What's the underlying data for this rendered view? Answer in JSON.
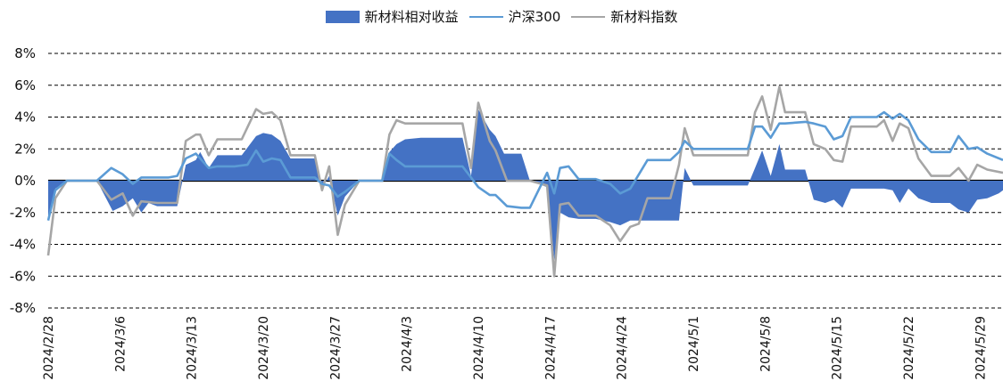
{
  "chart_data": {
    "type": "area",
    "title": "",
    "xlabel": "",
    "ylabel": "",
    "ylim": [
      -8,
      8
    ],
    "yticks": [
      -8,
      -6,
      -4,
      -2,
      0,
      2,
      4,
      6,
      8
    ],
    "ytick_labels": [
      "-8%",
      "-6%",
      "-4%",
      "-2%",
      "0%",
      "2%",
      "4%",
      "6%",
      "8%"
    ],
    "grid": "horizontal-dashed",
    "legend_position": "top-center",
    "x_tick_labels": [
      {
        "date": "2024/2/28",
        "index": 0
      },
      {
        "date": "2024/3/6",
        "index": 5
      },
      {
        "date": "2024/3/13",
        "index": 10
      },
      {
        "date": "2024/3/20",
        "index": 15
      },
      {
        "date": "2024/3/27",
        "index": 20
      },
      {
        "date": "2024/4/3",
        "index": 25
      },
      {
        "date": "2024/4/10",
        "index": 30
      },
      {
        "date": "2024/4/17",
        "index": 35
      },
      {
        "date": "2024/4/24",
        "index": 40
      },
      {
        "date": "2024/5/1",
        "index": 45
      },
      {
        "date": "2024/5/8",
        "index": 50
      },
      {
        "date": "2024/5/15",
        "index": 55
      },
      {
        "date": "2024/5/22",
        "index": 60
      },
      {
        "date": "2024/5/29",
        "index": 65
      }
    ],
    "series": [
      {
        "name": "新材料相对收益",
        "kind": "area",
        "color": "#4472C4",
        "values": [
          {
            "x": 0.0,
            "y": -2.3
          },
          {
            "x": 0.5,
            "y": -0.5
          },
          {
            "x": 1.3,
            "y": 0.0
          },
          {
            "x": 3.4,
            "y": 0.0
          },
          {
            "x": 4.5,
            "y": -1.9
          },
          {
            "x": 5.2,
            "y": -1.6
          },
          {
            "x": 5.9,
            "y": -1.1
          },
          {
            "x": 6.5,
            "y": -2.0
          },
          {
            "x": 7.0,
            "y": -1.4
          },
          {
            "x": 7.6,
            "y": -1.6
          },
          {
            "x": 9.0,
            "y": -1.6
          },
          {
            "x": 9.6,
            "y": 1.0
          },
          {
            "x": 10.3,
            "y": 1.3
          },
          {
            "x": 10.6,
            "y": 1.8
          },
          {
            "x": 11.2,
            "y": 0.8
          },
          {
            "x": 11.8,
            "y": 1.6
          },
          {
            "x": 13.5,
            "y": 1.6
          },
          {
            "x": 14.5,
            "y": 2.8
          },
          {
            "x": 15.0,
            "y": 3.0
          },
          {
            "x": 15.6,
            "y": 2.9
          },
          {
            "x": 16.2,
            "y": 2.5
          },
          {
            "x": 16.9,
            "y": 1.4
          },
          {
            "x": 18.6,
            "y": 1.4
          },
          {
            "x": 19.1,
            "y": -0.5
          },
          {
            "x": 19.6,
            "y": 0.3
          },
          {
            "x": 20.2,
            "y": -2.2
          },
          {
            "x": 20.7,
            "y": -1.0
          },
          {
            "x": 21.7,
            "y": 0.0
          },
          {
            "x": 23.3,
            "y": 0.0
          },
          {
            "x": 23.8,
            "y": 1.8
          },
          {
            "x": 24.3,
            "y": 2.3
          },
          {
            "x": 24.9,
            "y": 2.6
          },
          {
            "x": 26.0,
            "y": 2.7
          },
          {
            "x": 28.9,
            "y": 2.7
          },
          {
            "x": 29.5,
            "y": 0.3
          },
          {
            "x": 30.0,
            "y": 4.5
          },
          {
            "x": 30.8,
            "y": 3.2
          },
          {
            "x": 31.2,
            "y": 2.8
          },
          {
            "x": 31.8,
            "y": 1.7
          },
          {
            "x": 33.0,
            "y": 1.7
          },
          {
            "x": 33.6,
            "y": 0.0
          },
          {
            "x": 34.8,
            "y": -0.4
          },
          {
            "x": 35.3,
            "y": -5.0
          },
          {
            "x": 35.7,
            "y": -2.0
          },
          {
            "x": 36.3,
            "y": -2.3
          },
          {
            "x": 37.0,
            "y": -2.4
          },
          {
            "x": 38.2,
            "y": -2.4
          },
          {
            "x": 39.2,
            "y": -2.6
          },
          {
            "x": 39.9,
            "y": -2.8
          },
          {
            "x": 40.6,
            "y": -2.5
          },
          {
            "x": 41.8,
            "y": -2.5
          },
          {
            "x": 44.0,
            "y": -2.5
          },
          {
            "x": 44.4,
            "y": 0.8
          },
          {
            "x": 45.0,
            "y": -0.3
          },
          {
            "x": 48.8,
            "y": -0.3
          },
          {
            "x": 49.3,
            "y": 0.8
          },
          {
            "x": 49.8,
            "y": 1.9
          },
          {
            "x": 50.4,
            "y": 0.3
          },
          {
            "x": 51.0,
            "y": 2.3
          },
          {
            "x": 51.4,
            "y": 0.7
          },
          {
            "x": 52.8,
            "y": 0.7
          },
          {
            "x": 53.4,
            "y": -1.2
          },
          {
            "x": 54.2,
            "y": -1.4
          },
          {
            "x": 54.8,
            "y": -1.2
          },
          {
            "x": 55.4,
            "y": -1.7
          },
          {
            "x": 56.0,
            "y": -0.5
          },
          {
            "x": 58.3,
            "y": -0.5
          },
          {
            "x": 58.9,
            "y": -0.6
          },
          {
            "x": 59.4,
            "y": -1.4
          },
          {
            "x": 60.0,
            "y": -0.5
          },
          {
            "x": 60.7,
            "y": -1.1
          },
          {
            "x": 61.6,
            "y": -1.4
          },
          {
            "x": 62.9,
            "y": -1.4
          },
          {
            "x": 63.5,
            "y": -1.8
          },
          {
            "x": 64.2,
            "y": -2.0
          },
          {
            "x": 64.8,
            "y": -1.2
          },
          {
            "x": 65.5,
            "y": -1.1
          },
          {
            "x": 66.3,
            "y": -0.8
          },
          {
            "x": 66.6,
            "y": -0.6
          }
        ]
      },
      {
        "name": "沪深300",
        "kind": "line",
        "color": "#5B9BD5",
        "values": [
          {
            "x": 0.0,
            "y": -2.5
          },
          {
            "x": 0.5,
            "y": -0.6
          },
          {
            "x": 1.3,
            "y": 0.0
          },
          {
            "x": 3.4,
            "y": 0.0
          },
          {
            "x": 4.4,
            "y": 0.8
          },
          {
            "x": 5.2,
            "y": 0.4
          },
          {
            "x": 5.9,
            "y": -0.2
          },
          {
            "x": 6.5,
            "y": 0.2
          },
          {
            "x": 7.6,
            "y": 0.2
          },
          {
            "x": 8.4,
            "y": 0.2
          },
          {
            "x": 9.0,
            "y": 0.3
          },
          {
            "x": 9.6,
            "y": 1.4
          },
          {
            "x": 10.3,
            "y": 1.7
          },
          {
            "x": 11.2,
            "y": 0.8
          },
          {
            "x": 11.8,
            "y": 0.9
          },
          {
            "x": 13.0,
            "y": 0.9
          },
          {
            "x": 13.9,
            "y": 1.0
          },
          {
            "x": 14.5,
            "y": 1.9
          },
          {
            "x": 15.0,
            "y": 1.2
          },
          {
            "x": 15.6,
            "y": 1.4
          },
          {
            "x": 16.2,
            "y": 1.3
          },
          {
            "x": 16.9,
            "y": 0.2
          },
          {
            "x": 18.6,
            "y": 0.2
          },
          {
            "x": 19.1,
            "y": -0.2
          },
          {
            "x": 19.6,
            "y": -0.3
          },
          {
            "x": 20.2,
            "y": -1.0
          },
          {
            "x": 20.7,
            "y": -0.7
          },
          {
            "x": 21.7,
            "y": 0.0
          },
          {
            "x": 23.3,
            "y": 0.0
          },
          {
            "x": 23.8,
            "y": 1.7
          },
          {
            "x": 24.3,
            "y": 1.3
          },
          {
            "x": 24.9,
            "y": 0.9
          },
          {
            "x": 26.0,
            "y": 0.9
          },
          {
            "x": 28.9,
            "y": 0.9
          },
          {
            "x": 29.5,
            "y": 0.2
          },
          {
            "x": 30.0,
            "y": -0.4
          },
          {
            "x": 30.8,
            "y": -0.9
          },
          {
            "x": 31.2,
            "y": -0.9
          },
          {
            "x": 32.0,
            "y": -1.6
          },
          {
            "x": 33.0,
            "y": -1.7
          },
          {
            "x": 33.6,
            "y": -1.7
          },
          {
            "x": 34.8,
            "y": 0.5
          },
          {
            "x": 35.3,
            "y": -0.8
          },
          {
            "x": 35.7,
            "y": 0.8
          },
          {
            "x": 36.3,
            "y": 0.9
          },
          {
            "x": 37.0,
            "y": 0.1
          },
          {
            "x": 38.2,
            "y": 0.1
          },
          {
            "x": 39.2,
            "y": -0.2
          },
          {
            "x": 39.9,
            "y": -0.8
          },
          {
            "x": 40.6,
            "y": -0.5
          },
          {
            "x": 41.8,
            "y": 1.3
          },
          {
            "x": 43.4,
            "y": 1.3
          },
          {
            "x": 44.0,
            "y": 1.8
          },
          {
            "x": 44.4,
            "y": 2.5
          },
          {
            "x": 45.0,
            "y": 2.0
          },
          {
            "x": 48.8,
            "y": 2.0
          },
          {
            "x": 49.3,
            "y": 3.4
          },
          {
            "x": 49.8,
            "y": 3.4
          },
          {
            "x": 50.4,
            "y": 2.7
          },
          {
            "x": 51.0,
            "y": 3.6
          },
          {
            "x": 51.4,
            "y": 3.6
          },
          {
            "x": 52.8,
            "y": 3.7
          },
          {
            "x": 53.4,
            "y": 3.6
          },
          {
            "x": 54.2,
            "y": 3.4
          },
          {
            "x": 54.8,
            "y": 2.6
          },
          {
            "x": 55.4,
            "y": 2.8
          },
          {
            "x": 56.0,
            "y": 4.0
          },
          {
            "x": 57.8,
            "y": 4.0
          },
          {
            "x": 58.3,
            "y": 4.3
          },
          {
            "x": 58.9,
            "y": 3.9
          },
          {
            "x": 59.4,
            "y": 4.2
          },
          {
            "x": 60.0,
            "y": 3.8
          },
          {
            "x": 60.7,
            "y": 2.6
          },
          {
            "x": 61.6,
            "y": 1.8
          },
          {
            "x": 62.9,
            "y": 1.8
          },
          {
            "x": 63.5,
            "y": 2.8
          },
          {
            "x": 64.2,
            "y": 2.0
          },
          {
            "x": 64.8,
            "y": 2.1
          },
          {
            "x": 65.5,
            "y": 1.7
          },
          {
            "x": 66.6,
            "y": 1.3
          }
        ]
      },
      {
        "name": "新材料指数",
        "kind": "line",
        "color": "#A6A6A6",
        "values": [
          {
            "x": 0.0,
            "y": -4.7
          },
          {
            "x": 0.5,
            "y": -1.1
          },
          {
            "x": 1.3,
            "y": 0.0
          },
          {
            "x": 3.4,
            "y": 0.0
          },
          {
            "x": 4.4,
            "y": -1.2
          },
          {
            "x": 5.2,
            "y": -0.8
          },
          {
            "x": 5.9,
            "y": -2.2
          },
          {
            "x": 6.5,
            "y": -1.3
          },
          {
            "x": 7.6,
            "y": -1.4
          },
          {
            "x": 9.0,
            "y": -1.4
          },
          {
            "x": 9.6,
            "y": 2.5
          },
          {
            "x": 10.3,
            "y": 2.9
          },
          {
            "x": 10.6,
            "y": 2.9
          },
          {
            "x": 11.2,
            "y": 1.6
          },
          {
            "x": 11.8,
            "y": 2.6
          },
          {
            "x": 13.5,
            "y": 2.6
          },
          {
            "x": 14.5,
            "y": 4.5
          },
          {
            "x": 15.0,
            "y": 4.2
          },
          {
            "x": 15.6,
            "y": 4.3
          },
          {
            "x": 16.2,
            "y": 3.8
          },
          {
            "x": 16.9,
            "y": 1.6
          },
          {
            "x": 18.6,
            "y": 1.6
          },
          {
            "x": 19.1,
            "y": -0.6
          },
          {
            "x": 19.6,
            "y": 0.9
          },
          {
            "x": 20.2,
            "y": -3.4
          },
          {
            "x": 20.7,
            "y": -1.5
          },
          {
            "x": 21.7,
            "y": 0.0
          },
          {
            "x": 23.3,
            "y": 0.0
          },
          {
            "x": 23.8,
            "y": 2.9
          },
          {
            "x": 24.3,
            "y": 3.8
          },
          {
            "x": 24.9,
            "y": 3.6
          },
          {
            "x": 26.0,
            "y": 3.6
          },
          {
            "x": 28.9,
            "y": 3.6
          },
          {
            "x": 29.5,
            "y": 0.8
          },
          {
            "x": 30.0,
            "y": 4.9
          },
          {
            "x": 30.8,
            "y": 2.5
          },
          {
            "x": 31.2,
            "y": 1.9
          },
          {
            "x": 32.0,
            "y": 0.0
          },
          {
            "x": 33.6,
            "y": 0.0
          },
          {
            "x": 34.8,
            "y": -0.3
          },
          {
            "x": 35.3,
            "y": -6.0
          },
          {
            "x": 35.7,
            "y": -1.5
          },
          {
            "x": 36.3,
            "y": -1.4
          },
          {
            "x": 37.0,
            "y": -2.2
          },
          {
            "x": 38.2,
            "y": -2.2
          },
          {
            "x": 39.2,
            "y": -2.8
          },
          {
            "x": 39.9,
            "y": -3.8
          },
          {
            "x": 40.6,
            "y": -2.9
          },
          {
            "x": 41.2,
            "y": -2.7
          },
          {
            "x": 41.8,
            "y": -1.1
          },
          {
            "x": 43.4,
            "y": -1.1
          },
          {
            "x": 44.0,
            "y": 1.0
          },
          {
            "x": 44.4,
            "y": 3.3
          },
          {
            "x": 45.0,
            "y": 1.6
          },
          {
            "x": 48.8,
            "y": 1.6
          },
          {
            "x": 49.3,
            "y": 4.3
          },
          {
            "x": 49.8,
            "y": 5.3
          },
          {
            "x": 50.4,
            "y": 3.2
          },
          {
            "x": 51.0,
            "y": 5.9
          },
          {
            "x": 51.4,
            "y": 4.3
          },
          {
            "x": 52.8,
            "y": 4.3
          },
          {
            "x": 53.4,
            "y": 2.3
          },
          {
            "x": 54.2,
            "y": 2.0
          },
          {
            "x": 54.8,
            "y": 1.3
          },
          {
            "x": 55.4,
            "y": 1.2
          },
          {
            "x": 56.0,
            "y": 3.4
          },
          {
            "x": 57.8,
            "y": 3.4
          },
          {
            "x": 58.3,
            "y": 3.8
          },
          {
            "x": 58.9,
            "y": 2.5
          },
          {
            "x": 59.4,
            "y": 3.6
          },
          {
            "x": 60.0,
            "y": 3.3
          },
          {
            "x": 60.7,
            "y": 1.4
          },
          {
            "x": 61.6,
            "y": 0.3
          },
          {
            "x": 62.9,
            "y": 0.3
          },
          {
            "x": 63.5,
            "y": 0.8
          },
          {
            "x": 64.2,
            "y": 0.0
          },
          {
            "x": 64.8,
            "y": 1.0
          },
          {
            "x": 65.5,
            "y": 0.7
          },
          {
            "x": 66.6,
            "y": 0.5
          }
        ]
      }
    ]
  }
}
